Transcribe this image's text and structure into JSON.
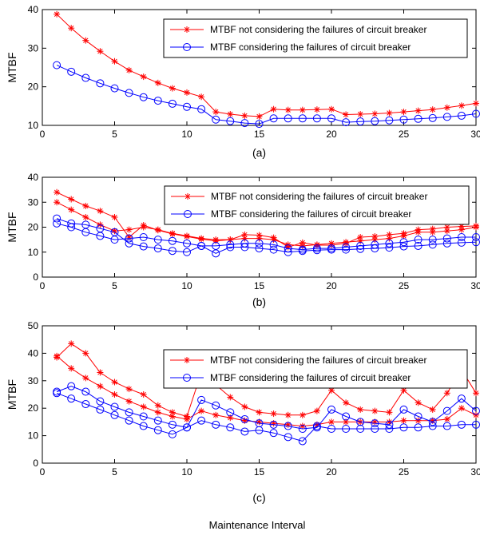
{
  "figure": {
    "xlabel": "Maintenance Interval",
    "ylabel": "MTBF"
  },
  "colors": {
    "red": "#ff0000",
    "blue": "#0000ff",
    "axis": "#000000"
  },
  "chart_data": [
    {
      "type": "line",
      "caption": "(a)",
      "xlim": [
        0,
        30
      ],
      "ylim": [
        10,
        40
      ],
      "xticks": [
        0,
        5,
        10,
        15,
        20,
        25,
        30
      ],
      "yticks": [
        10,
        20,
        30,
        40
      ],
      "legend_placement": "top-right",
      "series": [
        {
          "name": "MTBF not considering the failures of circuit breaker",
          "color": "#ff0000",
          "marker": "star",
          "lines": [
            {
              "x": [
                1,
                2,
                3,
                4,
                5,
                6,
                7,
                8,
                9,
                10,
                11,
                12,
                13,
                14,
                15,
                16,
                17,
                18,
                19,
                20,
                21,
                22,
                23,
                24,
                25,
                26,
                27,
                28,
                29,
                30
              ],
              "y": [
                38.8,
                35.2,
                32.0,
                29.2,
                26.6,
                24.3,
                22.6,
                21.0,
                19.6,
                18.5,
                17.4,
                13.5,
                12.9,
                12.5,
                12.3,
                14.2,
                14.0,
                14.0,
                14.1,
                14.2,
                12.8,
                12.9,
                13.0,
                13.2,
                13.5,
                13.8,
                14.1,
                14.6,
                15.1,
                15.7
              ]
            }
          ]
        },
        {
          "name": "MTBF considering the failures of circuit breaker",
          "color": "#0000ff",
          "marker": "circle",
          "lines": [
            {
              "x": [
                1,
                2,
                3,
                4,
                5,
                6,
                7,
                8,
                9,
                10,
                11,
                12,
                13,
                14,
                15,
                16,
                17,
                18,
                19,
                20,
                21,
                22,
                23,
                24,
                25,
                26,
                27,
                28,
                29,
                30
              ],
              "y": [
                25.6,
                23.9,
                22.3,
                20.9,
                19.6,
                18.4,
                17.3,
                16.4,
                15.6,
                14.8,
                14.2,
                11.5,
                11.1,
                10.6,
                10.4,
                11.8,
                11.8,
                11.8,
                11.8,
                11.8,
                10.8,
                11.0,
                11.1,
                11.3,
                11.5,
                11.7,
                11.9,
                12.2,
                12.5,
                13.0
              ]
            }
          ]
        }
      ]
    },
    {
      "type": "line",
      "caption": "(b)",
      "xlim": [
        0,
        30
      ],
      "ylim": [
        0,
        40
      ],
      "xticks": [
        0,
        5,
        10,
        15,
        20,
        25,
        30
      ],
      "yticks": [
        0,
        10,
        20,
        30,
        40
      ],
      "legend_placement": "top-right",
      "series": [
        {
          "name": "MTBF not considering the failures of circuit breaker",
          "color": "#ff0000",
          "marker": "star",
          "lines": [
            {
              "x": [
                1,
                2,
                3,
                4,
                5,
                6,
                7,
                8,
                9,
                10,
                11,
                12,
                13,
                14,
                15,
                16,
                17,
                18,
                19,
                20,
                21,
                22,
                23,
                24,
                25,
                26,
                27,
                28,
                29,
                30
              ],
              "y": [
                34.0,
                31.2,
                28.5,
                26.5,
                24.0,
                16.0,
                20.8,
                18.8,
                17.3,
                16.3,
                15.2,
                14.5,
                15.0,
                17.0,
                16.8,
                15.8,
                12.0,
                13.8,
                12.8,
                12.8,
                13.5,
                16.0,
                16.3,
                17.0,
                17.5,
                19.0,
                19.3,
                20.0,
                20.3,
                20.5
              ]
            },
            {
              "x": [
                1,
                2,
                3,
                4,
                5,
                6,
                7,
                8,
                9,
                10,
                11,
                12,
                13,
                14,
                15,
                16,
                17,
                18,
                19,
                20,
                21,
                22,
                23,
                24,
                25,
                26,
                27,
                28,
                29,
                30
              ],
              "y": [
                30.0,
                27.0,
                24.0,
                21.0,
                18.5,
                19.0,
                20.0,
                19.0,
                17.5,
                16.5,
                15.5,
                15.0,
                15.0,
                15.5,
                15.5,
                15.0,
                13.0,
                12.5,
                13.0,
                13.5,
                14.0,
                14.5,
                15.0,
                15.5,
                16.5,
                18.0,
                18.0,
                18.5,
                19.0,
                20.0
              ]
            }
          ]
        },
        {
          "name": "MTBF considering the failures of circuit breaker",
          "color": "#0000ff",
          "marker": "circle",
          "lines": [
            {
              "x": [
                1,
                2,
                3,
                4,
                5,
                6,
                7,
                8,
                9,
                10,
                11,
                12,
                13,
                14,
                15,
                16,
                17,
                18,
                19,
                20,
                21,
                22,
                23,
                24,
                25,
                26,
                27,
                28,
                29,
                30
              ],
              "y": [
                23.5,
                21.5,
                21.0,
                19.5,
                18.0,
                13.5,
                12.3,
                11.5,
                10.5,
                10.0,
                12.5,
                9.5,
                12.0,
                12.0,
                11.5,
                11.0,
                10.0,
                10.5,
                10.8,
                11.0,
                11.0,
                11.3,
                11.5,
                11.8,
                12.3,
                12.5,
                13.0,
                13.5,
                13.8,
                14.0
              ]
            },
            {
              "x": [
                1,
                2,
                3,
                4,
                5,
                6,
                7,
                8,
                9,
                10,
                11,
                12,
                13,
                14,
                15,
                16,
                17,
                18,
                19,
                20,
                21,
                22,
                23,
                24,
                25,
                26,
                27,
                28,
                29,
                30
              ],
              "y": [
                21.5,
                20.0,
                18.0,
                16.5,
                15.0,
                15.5,
                16.0,
                15.0,
                14.5,
                13.5,
                12.5,
                12.5,
                13.0,
                13.5,
                13.5,
                13.0,
                11.5,
                11.0,
                11.5,
                11.5,
                12.0,
                12.5,
                13.0,
                13.5,
                14.0,
                15.0,
                15.0,
                15.5,
                16.0,
                16.0
              ]
            }
          ]
        }
      ]
    },
    {
      "type": "line",
      "caption": "(c)",
      "xlim": [
        0,
        30
      ],
      "ylim": [
        0,
        50
      ],
      "xticks": [
        0,
        5,
        10,
        15,
        20,
        25,
        30
      ],
      "yticks": [
        0,
        10,
        20,
        30,
        40,
        50
      ],
      "legend_placement": "top-right",
      "series": [
        {
          "name": "MTBF not considering the failures of circuit breaker",
          "color": "#ff0000",
          "marker": "star",
          "lines": [
            {
              "x": [
                1,
                2,
                3,
                4,
                5,
                6,
                7,
                8,
                9,
                10,
                11,
                12,
                13,
                14,
                15,
                16,
                17,
                18,
                19,
                20,
                21,
                22,
                23,
                24,
                25,
                26,
                27,
                28,
                29,
                30
              ],
              "y": [
                38.5,
                43.5,
                40.0,
                33.0,
                29.5,
                27.0,
                25.0,
                21.0,
                18.5,
                17.0,
                33.0,
                28.5,
                24.0,
                20.5,
                18.5,
                18.0,
                17.5,
                17.5,
                19.0,
                26.5,
                22.0,
                19.5,
                19.0,
                18.5,
                26.5,
                22.0,
                19.5,
                25.5,
                34.0,
                25.5
              ]
            },
            {
              "x": [
                1,
                2,
                3,
                4,
                5,
                6,
                7,
                8,
                9,
                10,
                11,
                12,
                13,
                14,
                15,
                16,
                17,
                18,
                19,
                20,
                21,
                22,
                23,
                24,
                25,
                26,
                27,
                28,
                29,
                30
              ],
              "y": [
                39.0,
                34.5,
                31.0,
                28.0,
                25.0,
                22.5,
                20.5,
                18.5,
                17.0,
                16.0,
                19.0,
                17.5,
                16.5,
                15.5,
                15.0,
                14.5,
                14.0,
                13.5,
                14.0,
                15.0,
                15.0,
                15.0,
                15.0,
                15.0,
                15.5,
                15.5,
                15.5,
                16.0,
                20.0,
                17.5
              ]
            }
          ]
        },
        {
          "name": "MTBF considering the failures of circuit breaker",
          "color": "#0000ff",
          "marker": "circle",
          "lines": [
            {
              "x": [
                1,
                2,
                3,
                4,
                5,
                6,
                7,
                8,
                9,
                10,
                11,
                12,
                13,
                14,
                15,
                16,
                17,
                18,
                19,
                20,
                21,
                22,
                23,
                24,
                25,
                26,
                27,
                28,
                29,
                30
              ],
              "y": [
                26.0,
                28.0,
                26.0,
                22.5,
                20.5,
                18.5,
                17.0,
                15.5,
                14.0,
                13.0,
                23.0,
                21.0,
                18.5,
                16.0,
                14.5,
                14.0,
                13.5,
                12.5,
                13.0,
                19.5,
                17.0,
                15.0,
                14.5,
                14.0,
                19.5,
                17.0,
                15.0,
                19.0,
                23.5,
                19.0
              ]
            },
            {
              "x": [
                1,
                2,
                3,
                4,
                5,
                6,
                7,
                8,
                9,
                10,
                11,
                12,
                13,
                14,
                15,
                16,
                17,
                18,
                19,
                20,
                21,
                22,
                23,
                24,
                25,
                26,
                27,
                28,
                29,
                30
              ],
              "y": [
                25.5,
                23.5,
                21.5,
                19.5,
                17.5,
                15.5,
                13.5,
                12.0,
                10.5,
                13.0,
                15.5,
                14.0,
                13.0,
                11.5,
                12.0,
                11.0,
                9.5,
                8.0,
                13.5,
                12.5,
                12.5,
                12.5,
                12.5,
                12.5,
                13.0,
                13.0,
                13.5,
                13.5,
                14.0,
                14.0
              ]
            }
          ]
        }
      ]
    }
  ]
}
